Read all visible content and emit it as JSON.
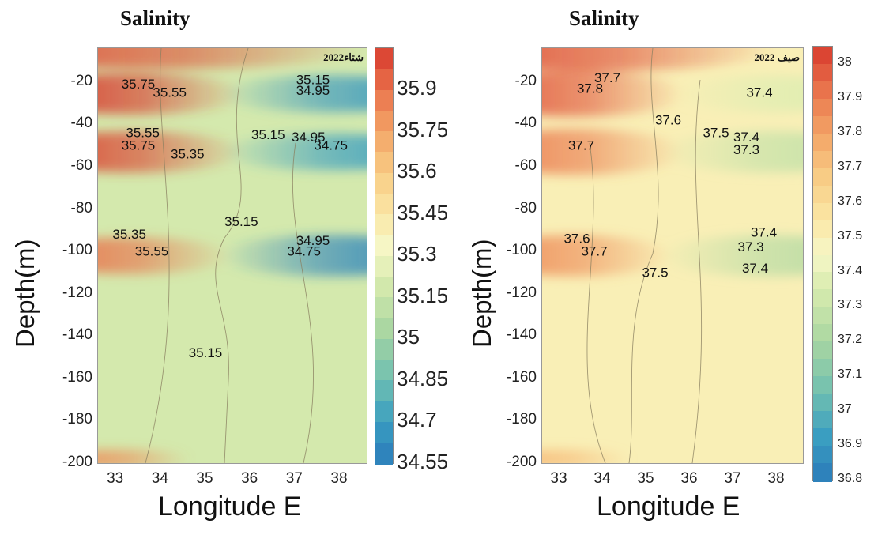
{
  "chart_data": [
    {
      "type": "contour",
      "title": "Salinity",
      "season_label": "شتاء2022",
      "xlabel": "Longitude E",
      "ylabel": "Depth(m)",
      "xlim": [
        32.6,
        38.6
      ],
      "ylim": [
        -200,
        -4
      ],
      "x_ticks": [
        "33",
        "34",
        "35",
        "36",
        "37",
        "38"
      ],
      "y_ticks": [
        "-20",
        "-40",
        "-60",
        "-80",
        "-100",
        "-120",
        "-140",
        "-160",
        "-180",
        "-200"
      ],
      "colorbar_ticks": [
        "35.9",
        "35.75",
        "35.6",
        "35.45",
        "35.3",
        "35.15",
        "35",
        "34.85",
        "34.7",
        "34.55"
      ],
      "colorbar_range": [
        34.55,
        36.05
      ],
      "contour_labels": [
        {
          "text": "35.75",
          "x": 33.5,
          "y": -23
        },
        {
          "text": "35.55",
          "x": 34.2,
          "y": -27
        },
        {
          "text": "35.15",
          "x": 37.4,
          "y": -21
        },
        {
          "text": "34.95",
          "x": 37.4,
          "y": -26
        },
        {
          "text": "35.55",
          "x": 33.6,
          "y": -46
        },
        {
          "text": "35.75",
          "x": 33.5,
          "y": -52
        },
        {
          "text": "35.35",
          "x": 34.6,
          "y": -56
        },
        {
          "text": "35.15",
          "x": 36.4,
          "y": -47
        },
        {
          "text": "34.95",
          "x": 37.3,
          "y": -48
        },
        {
          "text": "34.75",
          "x": 37.8,
          "y": -52
        },
        {
          "text": "35.15",
          "x": 35.8,
          "y": -88
        },
        {
          "text": "35.35",
          "x": 33.3,
          "y": -94
        },
        {
          "text": "35.55",
          "x": 33.8,
          "y": -102
        },
        {
          "text": "34.95",
          "x": 37.4,
          "y": -97
        },
        {
          "text": "34.75",
          "x": 37.2,
          "y": -102
        },
        {
          "text": "35.15",
          "x": 35.0,
          "y": -150
        }
      ]
    },
    {
      "type": "contour",
      "title": "Salinity",
      "season_label": "صيف 2022",
      "xlabel": "Longitude E",
      "ylabel": "Depth(m)",
      "xlim": [
        32.6,
        38.6
      ],
      "ylim": [
        -200,
        -4
      ],
      "x_ticks": [
        "33",
        "34",
        "35",
        "36",
        "37",
        "38"
      ],
      "y_ticks": [
        "-20",
        "-40",
        "-60",
        "-80",
        "-100",
        "-120",
        "-140",
        "-160",
        "-180",
        "-200"
      ],
      "colorbar_ticks": [
        "38",
        "37.9",
        "37.8",
        "37.7",
        "37.6",
        "37.5",
        "37.4",
        "37.3",
        "37.2",
        "37.1",
        "37",
        "36.9",
        "36.8"
      ],
      "colorbar_range": [
        36.8,
        38.05
      ],
      "contour_labels": [
        {
          "text": "37.7",
          "x": 34.1,
          "y": -20
        },
        {
          "text": "37.8",
          "x": 33.7,
          "y": -25
        },
        {
          "text": "37.4",
          "x": 37.6,
          "y": -27
        },
        {
          "text": "37.6",
          "x": 35.5,
          "y": -40
        },
        {
          "text": "37.5",
          "x": 36.6,
          "y": -46
        },
        {
          "text": "37.4",
          "x": 37.3,
          "y": -48
        },
        {
          "text": "37.3",
          "x": 37.3,
          "y": -54
        },
        {
          "text": "37.7",
          "x": 33.5,
          "y": -52
        },
        {
          "text": "37.4",
          "x": 37.7,
          "y": -93
        },
        {
          "text": "37.6",
          "x": 33.4,
          "y": -96
        },
        {
          "text": "37.7",
          "x": 33.8,
          "y": -102
        },
        {
          "text": "37.3",
          "x": 37.4,
          "y": -100
        },
        {
          "text": "37.5",
          "x": 35.2,
          "y": -112
        },
        {
          "text": "37.4",
          "x": 37.5,
          "y": -110
        }
      ]
    }
  ]
}
